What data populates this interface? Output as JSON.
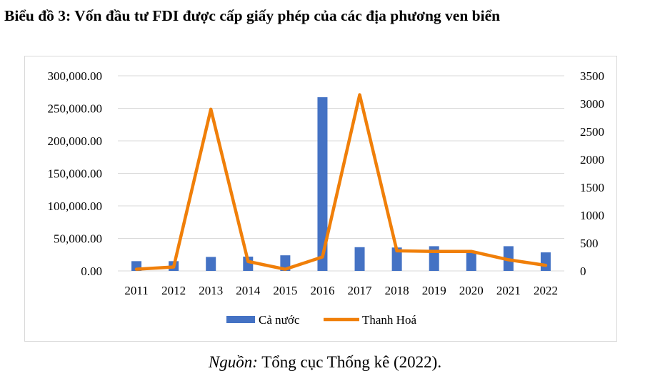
{
  "title": "Biểu đồ 3: Vốn đầu tư FDI được cấp giấy phép của các địa phương ven biển",
  "source": {
    "label": "Nguồn:",
    "text": "Tổng cục Thống kê (2022)."
  },
  "chart_data": {
    "type": "bar",
    "categories": [
      "2011",
      "2012",
      "2013",
      "2014",
      "2015",
      "2016",
      "2017",
      "2018",
      "2019",
      "2020",
      "2021",
      "2022"
    ],
    "series": [
      {
        "name": "Cả nước",
        "type": "bar",
        "axis": "left",
        "color": "#4472C4",
        "values": [
          15000,
          15000,
          21500,
          22000,
          24000,
          267000,
          36500,
          36000,
          38000,
          28500,
          38000,
          28500
        ]
      },
      {
        "name": "Thanh Hoá",
        "type": "line",
        "axis": "right",
        "color": "#F07F09",
        "values": [
          30,
          70,
          2900,
          170,
          30,
          250,
          3160,
          360,
          350,
          350,
          200,
          100
        ]
      }
    ],
    "y_left": {
      "min": 0,
      "max": 300000,
      "ticks": [
        "0.00",
        "50,000.00",
        "100,000.00",
        "150,000.00",
        "200,000.00",
        "250,000.00",
        "300,000.00"
      ]
    },
    "y_right": {
      "min": 0,
      "max": 3500,
      "ticks": [
        "0",
        "500",
        "1000",
        "1500",
        "2000",
        "2500",
        "3000",
        "3500"
      ]
    },
    "grid": true,
    "legend": "bottom"
  }
}
